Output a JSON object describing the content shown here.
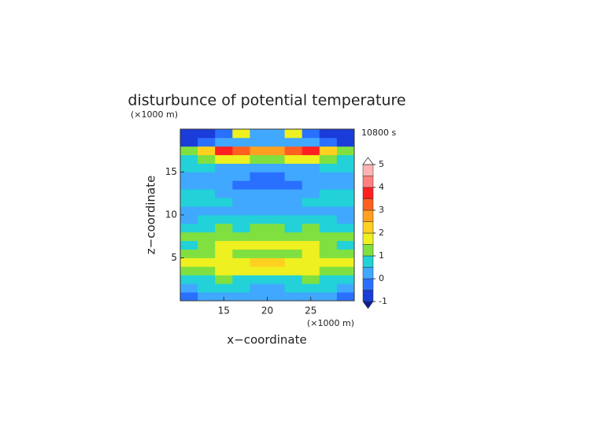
{
  "chart_data": {
    "type": "contour",
    "title": "disturbunce of potential temperature",
    "x_label": "x−coordinate",
    "y_label": "z−coordinate",
    "x_unit": "(×1000 m)",
    "y_unit": "(×1000 m)",
    "time_label": "10800 s",
    "xlim": [
      10,
      30
    ],
    "ylim": [
      0,
      20
    ],
    "xticks": [
      15,
      20,
      25
    ],
    "yticks": [
      5,
      10,
      15
    ],
    "x": [
      11,
      13,
      15,
      17,
      19,
      21,
      23,
      25,
      27,
      29
    ],
    "y": [
      0.5,
      1.5,
      2.5,
      3.5,
      4.5,
      5.5,
      6.5,
      7.5,
      8.5,
      9.5,
      10.5,
      11.5,
      12.5,
      13.5,
      14.5,
      15.5,
      16.5,
      17.5,
      18.5,
      19.5
    ],
    "z": [
      [
        -0.3,
        0.2,
        0.3,
        0.2,
        0.3,
        0.3,
        0.2,
        0.3,
        0.2,
        -0.3
      ],
      [
        0.3,
        0.5,
        0.7,
        0.6,
        0.4,
        0.4,
        0.6,
        0.7,
        0.5,
        0.3
      ],
      [
        0.7,
        0.8,
        1.0,
        0.9,
        0.7,
        0.7,
        0.9,
        1.0,
        0.8,
        0.7
      ],
      [
        1.2,
        1.4,
        1.6,
        1.7,
        1.9,
        1.9,
        1.7,
        1.6,
        1.4,
        1.2
      ],
      [
        1.7,
        1.9,
        1.8,
        1.9,
        2.1,
        2.1,
        1.9,
        1.8,
        1.9,
        1.7
      ],
      [
        1.2,
        1.4,
        1.5,
        1.3,
        1.4,
        1.4,
        1.3,
        1.5,
        1.4,
        1.2
      ],
      [
        0.9,
        1.2,
        1.6,
        1.8,
        1.6,
        1.6,
        1.8,
        1.6,
        1.2,
        0.9
      ],
      [
        1.3,
        1.1,
        1.0,
        1.2,
        1.4,
        1.4,
        1.2,
        1.0,
        1.1,
        1.3
      ],
      [
        0.7,
        0.8,
        1.0,
        0.9,
        1.1,
        1.1,
        0.9,
        1.0,
        0.8,
        0.7
      ],
      [
        0.4,
        0.5,
        0.6,
        0.6,
        0.7,
        0.7,
        0.6,
        0.6,
        0.5,
        0.4
      ],
      [
        0.3,
        0.2,
        0.3,
        0.4,
        0.2,
        0.2,
        0.4,
        0.3,
        0.2,
        0.3
      ],
      [
        0.6,
        0.7,
        0.5,
        0.4,
        0.3,
        0.3,
        0.4,
        0.5,
        0.7,
        0.6
      ],
      [
        0.7,
        0.6,
        0.4,
        0.2,
        0.1,
        0.1,
        0.2,
        0.4,
        0.6,
        0.7
      ],
      [
        0.3,
        0.1,
        0.0,
        -0.2,
        -0.4,
        -0.4,
        -0.2,
        0.0,
        0.1,
        0.3
      ],
      [
        0.3,
        0.2,
        0.1,
        0.0,
        -0.3,
        -0.3,
        0.0,
        0.1,
        0.2,
        0.3
      ],
      [
        0.6,
        0.5,
        0.4,
        0.3,
        0.2,
        0.2,
        0.3,
        0.4,
        0.5,
        0.6
      ],
      [
        0.9,
        1.3,
        1.8,
        1.6,
        1.2,
        1.2,
        1.6,
        1.8,
        1.3,
        0.9
      ],
      [
        1.4,
        2.2,
        3.9,
        3.2,
        2.5,
        2.5,
        3.2,
        3.9,
        2.2,
        1.4
      ],
      [
        -0.6,
        -0.3,
        0.2,
        0.4,
        0.1,
        0.1,
        0.4,
        0.2,
        -0.3,
        -0.6
      ],
      [
        -0.7,
        -0.6,
        -0.3,
        1.5,
        0.3,
        0.3,
        1.5,
        -0.3,
        -0.6,
        -0.7
      ]
    ],
    "levels": [
      -1,
      -0.5,
      0,
      0.5,
      1,
      1.5,
      2,
      2.5,
      3,
      3.5,
      4,
      4.5,
      5
    ],
    "colors": [
      "#1a3cd8",
      "#2a70ff",
      "#40a8ff",
      "#22d2d8",
      "#80e040",
      "#eef020",
      "#ffd020",
      "#ffa020",
      "#ff6020",
      "#ff2020",
      "#ff8080",
      "#ffb4b4"
    ],
    "under_color": "#101c90",
    "over_color": "#ffffff",
    "colorbar_ticks": [
      -1,
      0,
      1,
      2,
      3,
      4,
      5
    ]
  }
}
